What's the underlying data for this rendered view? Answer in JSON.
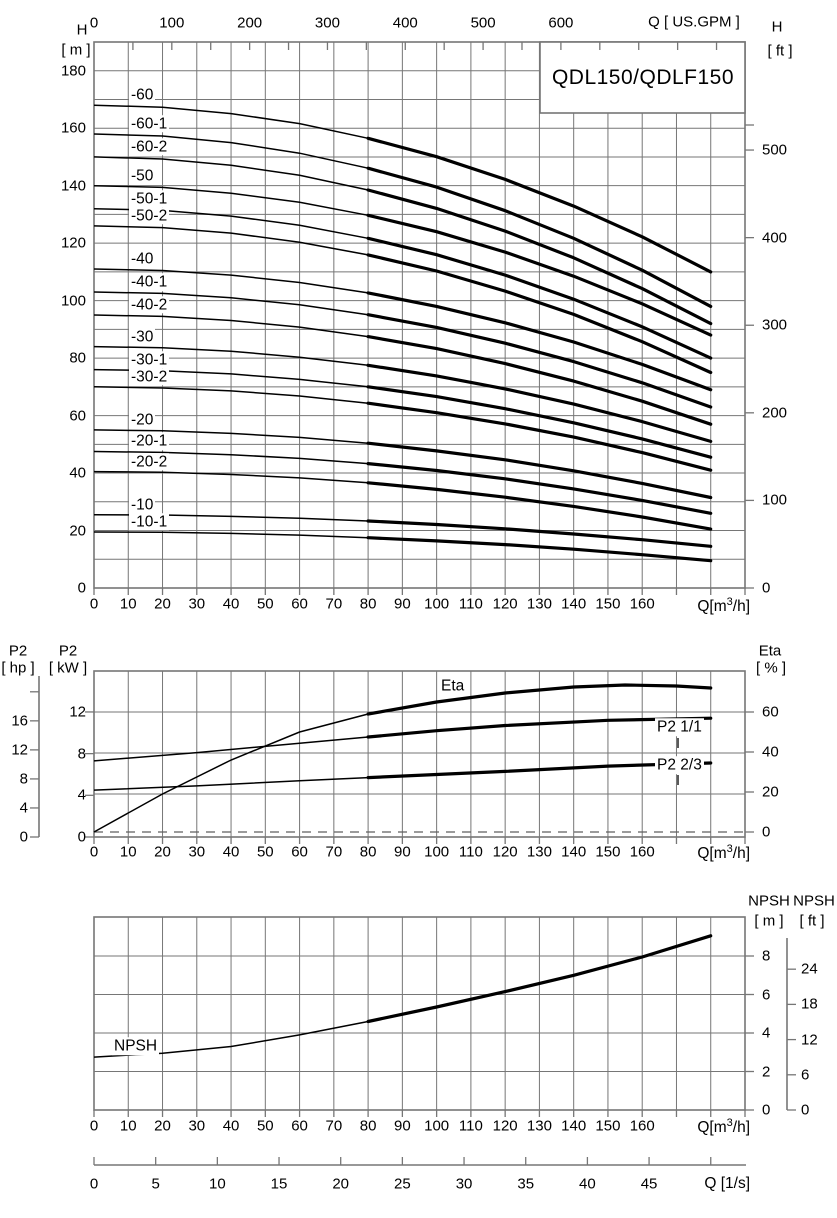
{
  "title": "QDL150/QDLF150",
  "labels": {
    "h_m": [
      "H",
      "[ m ]"
    ],
    "q_gpm": "Q [ US.GPM ]",
    "h_ft": [
      "H",
      "[ ft ]"
    ],
    "p2_hp": [
      "P2",
      "[ hp ]"
    ],
    "p2_kw": [
      "P2",
      "[ kW ]"
    ],
    "eta_pct": [
      "Eta",
      "[ % ]"
    ],
    "npsh_m": [
      "NPSH",
      "[ m ]"
    ],
    "npsh_ft": [
      "NPSH",
      "[ ft ]"
    ],
    "q_m3h": {
      "pre": "Q[m",
      "sup": "3",
      "post": "/h]"
    },
    "q_ls": "Q [1/s]"
  },
  "flow_ticks": [
    0,
    10,
    20,
    30,
    40,
    50,
    60,
    70,
    80,
    90,
    100,
    110,
    120,
    130,
    140,
    150,
    160
  ],
  "chart_data": [
    {
      "type": "line",
      "name": "head-curves",
      "title": "QDL150/QDLF150",
      "xlabel": "Q [m3/h]",
      "xlabel_top": "Q [ US.GPM ]",
      "ylabel": "H [m]",
      "ylabel_right": "H [ft]",
      "xlim": [
        0,
        190
      ],
      "ylim": [
        0,
        190
      ],
      "grid": true,
      "x": [
        0,
        20,
        40,
        60,
        80,
        100,
        120,
        140,
        160,
        180
      ],
      "y_ticks": [
        0,
        20,
        40,
        60,
        80,
        100,
        120,
        140,
        160,
        180
      ],
      "gpm_ticks": [
        0,
        100,
        200,
        300,
        400,
        500,
        600
      ],
      "ft_ticks": [
        0,
        100,
        200,
        300,
        400,
        500
      ],
      "series": [
        {
          "name": "-60",
          "values": [
            168,
            167.3,
            165.1,
            161.6,
            156.5,
            150.1,
            142.2,
            132.9,
            122.2,
            110
          ]
        },
        {
          "name": "-60-1",
          "values": [
            158,
            157.3,
            155.0,
            151.3,
            146.1,
            139.5,
            131.3,
            121.7,
            110.6,
            98
          ]
        },
        {
          "name": "-60-2",
          "values": [
            150,
            149.3,
            147.1,
            143.6,
            138.5,
            132.1,
            124.2,
            114.9,
            104.2,
            92
          ]
        },
        {
          "name": "-50",
          "values": [
            140,
            139.4,
            137.4,
            134.2,
            129.7,
            124.0,
            116.9,
            108.5,
            98.9,
            88
          ]
        },
        {
          "name": "-50-1",
          "values": [
            132,
            131.4,
            129.4,
            126.2,
            121.7,
            116.0,
            108.9,
            100.5,
            90.9,
            80
          ]
        },
        {
          "name": "-50-2",
          "values": [
            126,
            125.4,
            123.5,
            120.3,
            115.9,
            110.3,
            103.3,
            95.2,
            85.7,
            75
          ]
        },
        {
          "name": "-40",
          "values": [
            111,
            110.5,
            108.9,
            106.3,
            102.7,
            98.0,
            92.3,
            85.6,
            77.8,
            69
          ]
        },
        {
          "name": "-40-1",
          "values": [
            103,
            102.5,
            101.0,
            98.6,
            95.1,
            90.7,
            85.2,
            78.8,
            71.4,
            63
          ]
        },
        {
          "name": "-40-2",
          "values": [
            95,
            94.5,
            93.1,
            90.8,
            87.5,
            83.3,
            78.1,
            72.0,
            65.0,
            57
          ]
        },
        {
          "name": "-30",
          "values": [
            84,
            83.6,
            82.4,
            80.3,
            77.5,
            73.8,
            69.3,
            64.0,
            57.9,
            51
          ]
        },
        {
          "name": "-30-1",
          "values": [
            76,
            75.6,
            74.5,
            72.6,
            70.0,
            66.6,
            62.4,
            57.5,
            51.9,
            45.5
          ]
        },
        {
          "name": "-30-2",
          "values": [
            70,
            69.6,
            68.6,
            66.8,
            64.3,
            61.0,
            57.1,
            52.5,
            47.1,
            41
          ]
        },
        {
          "name": "-20",
          "values": [
            55,
            54.7,
            53.8,
            52.4,
            50.4,
            47.7,
            44.6,
            40.8,
            36.4,
            31.5
          ]
        },
        {
          "name": "-20-1",
          "values": [
            47.5,
            47.2,
            46.4,
            45.1,
            43.3,
            40.9,
            38.0,
            34.5,
            30.5,
            26
          ]
        },
        {
          "name": "-20-2",
          "values": [
            40.5,
            40.3,
            39.5,
            38.3,
            36.6,
            34.3,
            31.6,
            28.4,
            24.7,
            20.5
          ]
        },
        {
          "name": "-10",
          "values": [
            25.5,
            25.4,
            24.9,
            24.3,
            23.3,
            22.1,
            20.6,
            18.8,
            16.8,
            14.5
          ]
        },
        {
          "name": "-10-1",
          "values": [
            19.5,
            19.4,
            19.0,
            18.4,
            17.5,
            16.4,
            15.1,
            13.5,
            11.6,
            9.5
          ]
        }
      ]
    },
    {
      "type": "line",
      "name": "power-efficiency",
      "xlabel": "Q [m3/h]",
      "ylabel": "P2 [kW] / P2 [hp]",
      "ylabel_right": "Eta [%]",
      "xlim": [
        0,
        190
      ],
      "kw_ticks": [
        12,
        8,
        4,
        0
      ],
      "hp_ticks": [
        16,
        12,
        8,
        4,
        0
      ],
      "eta_ticks": [
        60,
        40,
        20,
        0
      ],
      "series": [
        {
          "name": "Eta",
          "unit": "%",
          "x": [
            0,
            20,
            40,
            60,
            80,
            100,
            120,
            140,
            155,
            170,
            180
          ],
          "values": [
            0,
            19,
            36,
            50,
            59,
            65,
            69.5,
            72.5,
            73.5,
            73,
            72
          ]
        },
        {
          "name": "P2 1/1",
          "unit": "kW",
          "x": [
            0,
            30,
            60,
            80,
            100,
            120,
            150,
            180
          ],
          "values": [
            7.3,
            8.1,
            9.0,
            9.6,
            10.2,
            10.7,
            11.2,
            11.4
          ]
        },
        {
          "name": "P2 2/3",
          "unit": "kW",
          "x": [
            0,
            30,
            60,
            80,
            100,
            120,
            150,
            180
          ],
          "values": [
            4.5,
            4.9,
            5.4,
            5.7,
            6.0,
            6.3,
            6.8,
            7.1
          ]
        }
      ]
    },
    {
      "type": "line",
      "name": "npsh",
      "xlabel": "Q [m3/h]",
      "xlabel_bottom": "Q [1/s]",
      "ylabel_right": "NPSH [m] / NPSH [ft]",
      "xlim": [
        0,
        190
      ],
      "ylim": [
        0,
        10
      ],
      "m_ticks": [
        8,
        6,
        4,
        2,
        0
      ],
      "ft_ticks": [
        24,
        18,
        12,
        6,
        0
      ],
      "ls_ticks": [
        0,
        5,
        10,
        15,
        20,
        25,
        30,
        35,
        40,
        45
      ],
      "series": [
        {
          "name": "NPSH",
          "unit": "m",
          "x": [
            0,
            20,
            40,
            60,
            80,
            100,
            120,
            140,
            160,
            180
          ],
          "values": [
            2.75,
            2.95,
            3.3,
            3.9,
            4.6,
            5.35,
            6.15,
            7.0,
            7.95,
            9.05
          ]
        }
      ]
    }
  ]
}
